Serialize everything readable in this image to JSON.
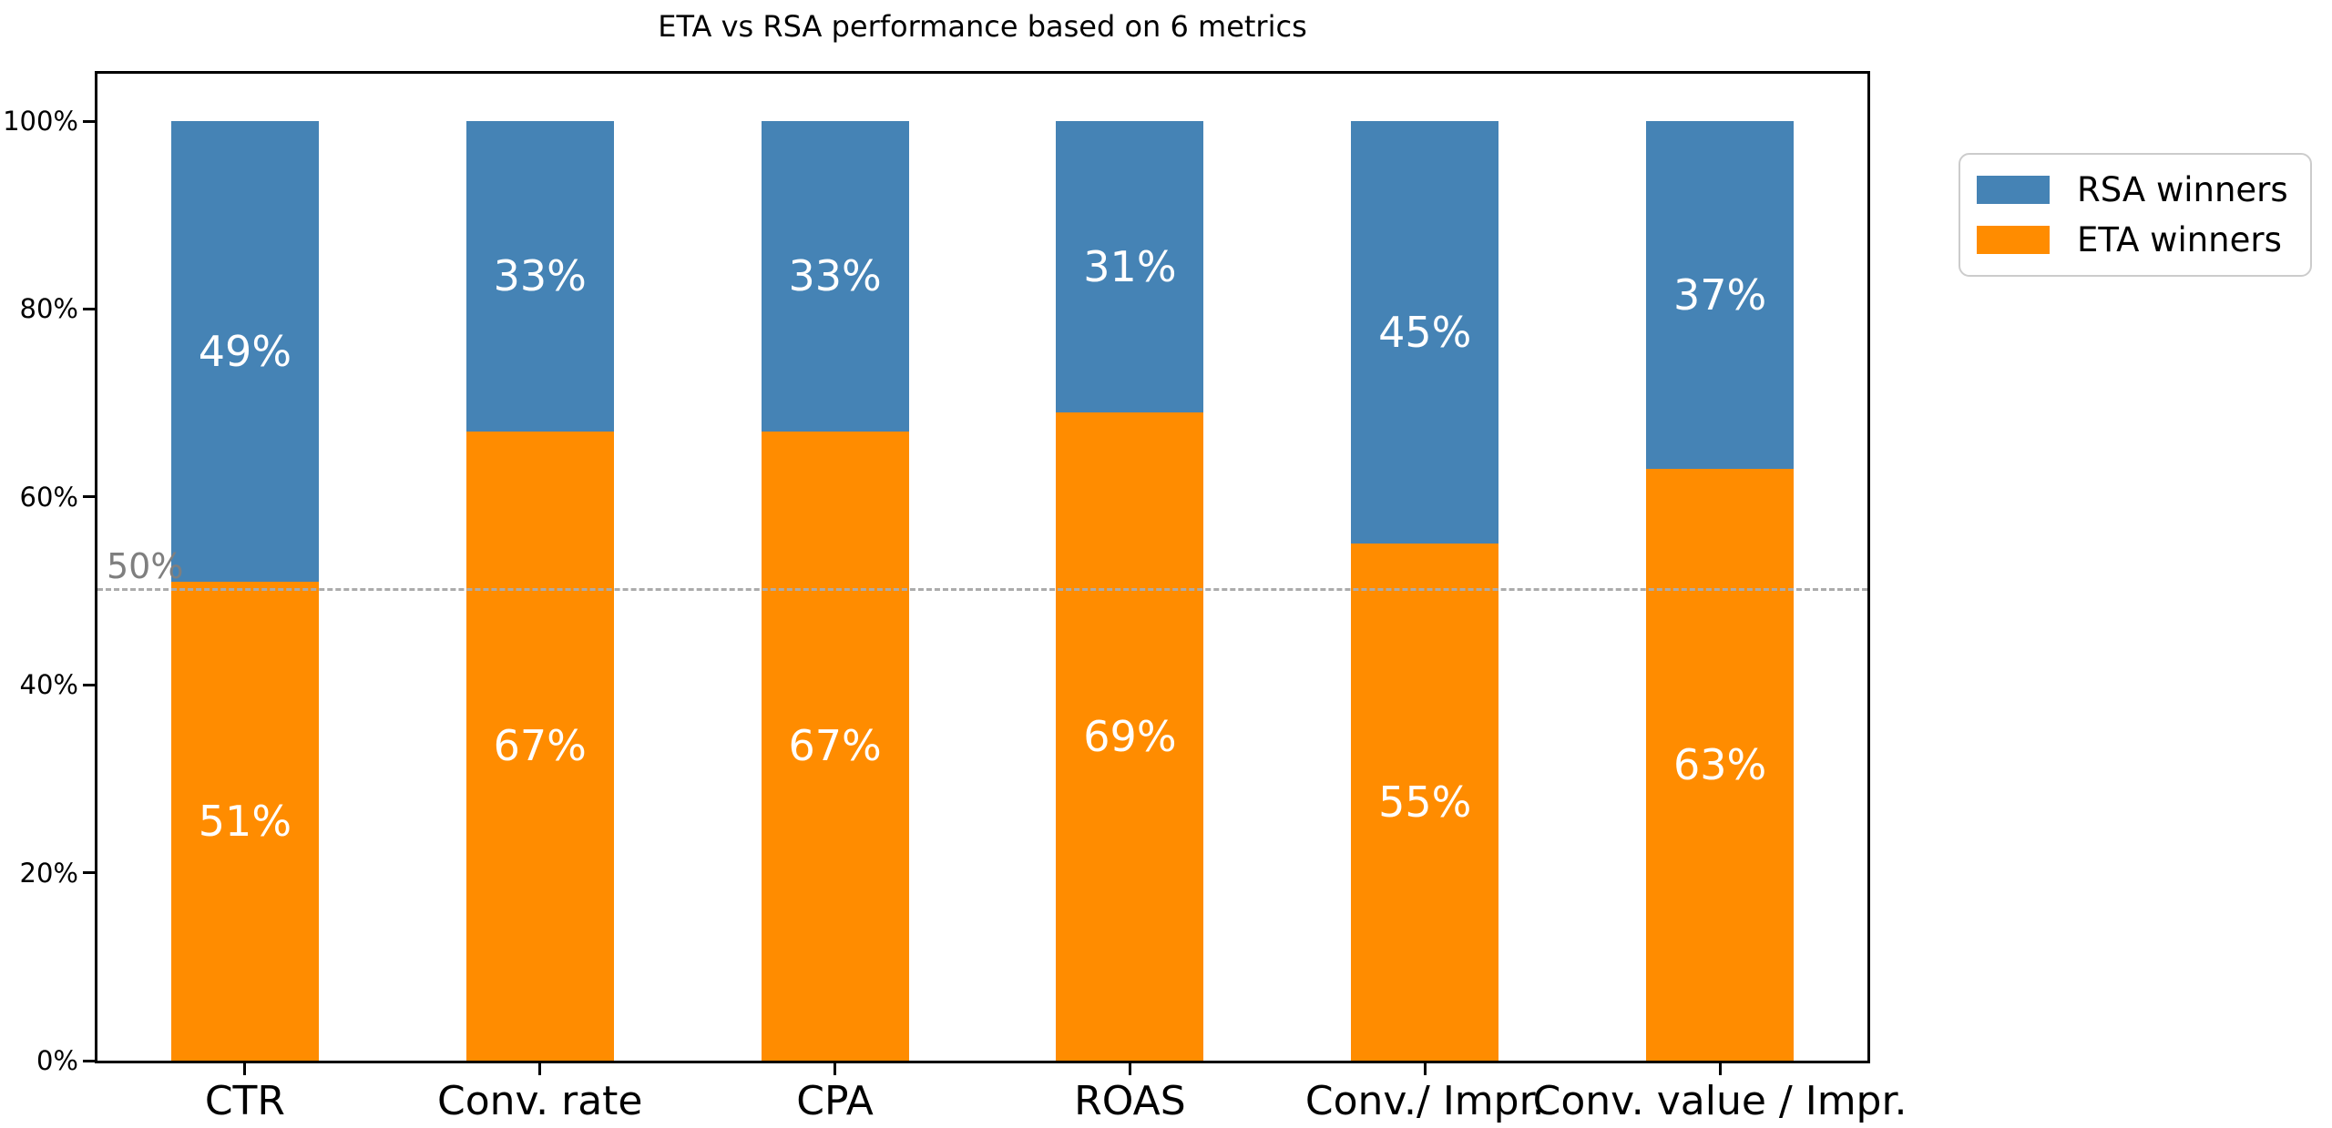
{
  "chart_data": {
    "type": "bar",
    "stacked": true,
    "title": "ETA vs RSA performance based on 6 metrics",
    "xlabel": "",
    "ylabel": "",
    "categories": [
      "CTR",
      "Conv. rate",
      "CPA",
      "ROAS",
      "Conv./ Impr.",
      "Conv. value / Impr."
    ],
    "series": [
      {
        "name": "ETA winners",
        "color": "#ff8c00",
        "values": [
          51,
          67,
          67,
          69,
          55,
          63
        ],
        "labels": [
          "51%",
          "67%",
          "67%",
          "69%",
          "55%",
          "63%"
        ]
      },
      {
        "name": "RSA winners",
        "color": "#4583b5",
        "values": [
          49,
          33,
          33,
          31,
          45,
          37
        ],
        "labels": [
          "49%",
          "33%",
          "33%",
          "31%",
          "45%",
          "37%"
        ]
      }
    ],
    "bar_label_color": "#ffffff",
    "y_ticks": [
      {
        "value": 0,
        "label": "0%"
      },
      {
        "value": 20,
        "label": "20%"
      },
      {
        "value": 40,
        "label": "40%"
      },
      {
        "value": 60,
        "label": "60%"
      },
      {
        "value": 80,
        "label": "80%"
      },
      {
        "value": 100,
        "label": "100%"
      }
    ],
    "ylim": [
      0,
      105
    ],
    "grid": false,
    "axis_color": "#000000",
    "reference_line": {
      "value": 50,
      "label": "50%",
      "line_color": "#ababab",
      "label_color": "#7f7f7f",
      "style": "dashed"
    },
    "legend": {
      "position": "outside-upper-right",
      "entries": [
        {
          "label": "RSA winners",
          "color": "#4583b5"
        },
        {
          "label": "ETA winners",
          "color": "#ff8c00"
        }
      ]
    }
  }
}
